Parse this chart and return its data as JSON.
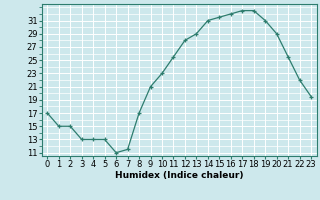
{
  "x": [
    0,
    1,
    2,
    3,
    4,
    5,
    6,
    7,
    8,
    9,
    10,
    11,
    12,
    13,
    14,
    15,
    16,
    17,
    18,
    19,
    20,
    21,
    22,
    23
  ],
  "y": [
    17,
    15,
    15,
    13,
    13,
    13,
    11,
    11.5,
    17,
    21,
    23,
    25.5,
    28,
    29,
    31,
    31.5,
    32,
    32.5,
    32.5,
    31,
    29,
    25.5,
    22,
    19.5
  ],
  "xlabel": "Humidex (Indice chaleur)",
  "xlabel_fontsize": 6.5,
  "yticks": [
    11,
    13,
    15,
    17,
    19,
    21,
    23,
    25,
    27,
    29,
    31
  ],
  "xticks": [
    0,
    1,
    2,
    3,
    4,
    5,
    6,
    7,
    8,
    9,
    10,
    11,
    12,
    13,
    14,
    15,
    16,
    17,
    18,
    19,
    20,
    21,
    22,
    23
  ],
  "ylim": [
    10.5,
    33.5
  ],
  "xlim": [
    -0.5,
    23.5
  ],
  "line_color": "#2e7d6e",
  "marker": "+",
  "bg_color": "#cde8ec",
  "grid_color": "#ffffff",
  "tick_label_fontsize": 6.0
}
